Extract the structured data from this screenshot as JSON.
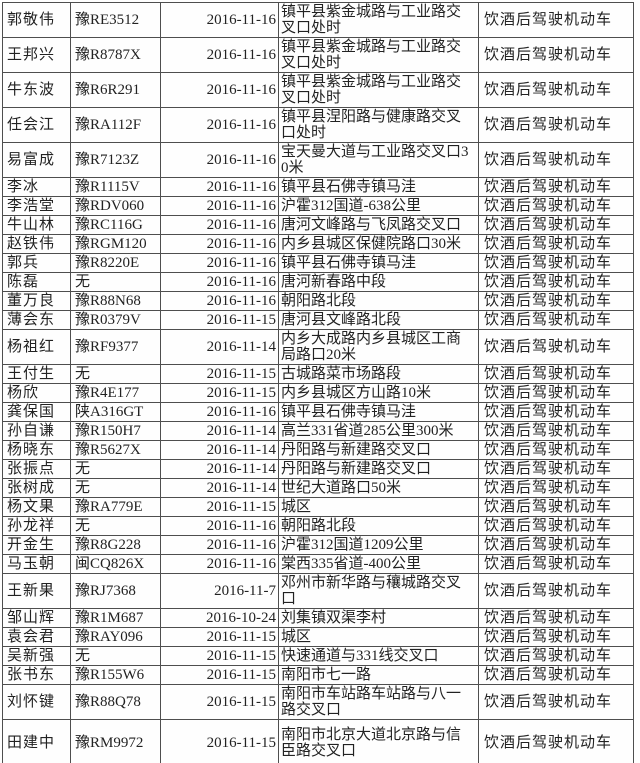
{
  "colors": {
    "border": "#4e4e4e",
    "text": "#222222",
    "background": "#fefefe"
  },
  "table": {
    "violation_common": "饮酒后驾驶机动车",
    "rows": [
      {
        "name": "郭敬伟",
        "plate": "豫RE3512",
        "date": "2016-11-16",
        "location": "镇平县紫金城路与工业路交叉口处时",
        "violation": "饮酒后驾驶机动车"
      },
      {
        "name": "王邦兴",
        "plate": "豫R8787X",
        "date": "2016-11-16",
        "location": "镇平县紫金城路与工业路交叉口处时",
        "violation": "饮酒后驾驶机动车"
      },
      {
        "name": "牛东波",
        "plate": "豫R6R291",
        "date": "2016-11-16",
        "location": "镇平县紫金城路与工业路交叉口处时",
        "violation": "饮酒后驾驶机动车"
      },
      {
        "name": "任会江",
        "plate": "豫RA112F",
        "date": "2016-11-16",
        "location": "镇平县涅阳路与健康路交叉口处时",
        "violation": "饮酒后驾驶机动车"
      },
      {
        "name": "易富成",
        "plate": "豫R7123Z",
        "date": "2016-11-16",
        "location": "宝天曼大道与工业路交叉口30米",
        "violation": "饮酒后驾驶机动车"
      },
      {
        "name": "李冰",
        "plate": "豫R1115V",
        "date": "2016-11-16",
        "location": "镇平县石佛寺镇马洼",
        "violation": "饮酒后驾驶机动车"
      },
      {
        "name": "李浩堂",
        "plate": "豫RDV060",
        "date": "2016-11-16",
        "location": "沪霍312国道-638公里",
        "violation": "饮酒后驾驶机动车"
      },
      {
        "name": "牛山林",
        "plate": "豫RC116G",
        "date": "2016-11-16",
        "location": "唐河文峰路与飞凤路交叉口",
        "violation": "饮酒后驾驶机动车"
      },
      {
        "name": "赵铁伟",
        "plate": "豫RGM120",
        "date": "2016-11-16",
        "location": "内乡县城区保健院路口30米",
        "violation": "饮酒后驾驶机动车"
      },
      {
        "name": "郭兵",
        "plate": "豫R8220E",
        "date": "2016-11-16",
        "location": "镇平县石佛寺镇马洼",
        "violation": "饮酒后驾驶机动车"
      },
      {
        "name": "陈磊",
        "plate": "无",
        "date": "2016-11-16",
        "location": "唐河新春路中段",
        "violation": "饮酒后驾驶机动车"
      },
      {
        "name": "董万良",
        "plate": "豫R88N68",
        "date": "2016-11-16",
        "location": "朝阳路北段",
        "violation": "饮酒后驾驶机动车"
      },
      {
        "name": "薄会东",
        "plate": "豫R0379V",
        "date": "2016-11-15",
        "location": "唐河县文峰路北段",
        "violation": "饮酒后驾驶机动车"
      },
      {
        "name": "杨祖红",
        "plate": "豫RF9377",
        "date": "2016-11-14",
        "location": "内乡大成路内乡县城区工商局路口20米",
        "violation": "饮酒后驾驶机动车"
      },
      {
        "name": "王付生",
        "plate": "无",
        "date": "2016-11-15",
        "location": "古城路菜市场路段",
        "violation": "饮酒后驾驶机动车"
      },
      {
        "name": "杨欣",
        "plate": "豫R4E177",
        "date": "2016-11-15",
        "location": "内乡县城区方山路10米",
        "violation": "饮酒后驾驶机动车"
      },
      {
        "name": "龚保国",
        "plate": "陕A316GT",
        "date": "2016-11-16",
        "location": "镇平县石佛寺镇马洼",
        "violation": "饮酒后驾驶机动车"
      },
      {
        "name": "孙自谦",
        "plate": "豫R150H7",
        "date": "2016-11-14",
        "location": "高兰331省道285公里300米",
        "violation": "饮酒后驾驶机动车"
      },
      {
        "name": "杨晓东",
        "plate": "豫R5627X",
        "date": "2016-11-14",
        "location": "丹阳路与新建路交叉口",
        "violation": "饮酒后驾驶机动车"
      },
      {
        "name": "张振点",
        "plate": "无",
        "date": "2016-11-14",
        "location": "丹阳路与新建路交叉口",
        "violation": "饮酒后驾驶机动车"
      },
      {
        "name": "张树成",
        "plate": "无",
        "date": "2016-11-14",
        "location": "世纪大道路口50米",
        "violation": "饮酒后驾驶机动车"
      },
      {
        "name": "杨文果",
        "plate": "豫RA779E",
        "date": "2016-11-15",
        "location": "城区",
        "violation": "饮酒后驾驶机动车"
      },
      {
        "name": "孙龙祥",
        "plate": "无",
        "date": "2016-11-16",
        "location": "朝阳路北段",
        "violation": "饮酒后驾驶机动车"
      },
      {
        "name": "开金生",
        "plate": "豫R8G228",
        "date": "2016-11-16",
        "location": "沪霍312国道1209公里",
        "violation": "饮酒后驾驶机动车"
      },
      {
        "name": "马玉朝",
        "plate": "闽CQ826X",
        "date": "2016-11-16",
        "location": "棠西335省道-400公里",
        "violation": "饮酒后驾驶机动车"
      },
      {
        "name": "王新果",
        "plate": "豫RJ7368",
        "date": "2016-11-7",
        "location": "邓州市新华路与穰城路交叉口",
        "violation": "饮酒后驾驶机动车"
      },
      {
        "name": "邹山辉",
        "plate": "豫R1M687",
        "date": "2016-10-24",
        "location": "刘集镇双渠李村",
        "violation": "饮酒后驾驶机动车"
      },
      {
        "name": "袁会君",
        "plate": "豫RAY096",
        "date": "2016-11-15",
        "location": "城区",
        "violation": "饮酒后驾驶机动车"
      },
      {
        "name": "吴新强",
        "plate": "无",
        "date": "2016-11-15",
        "location": "快速通道与331线交叉口",
        "violation": "饮酒后驾驶机动车"
      },
      {
        "name": "张书东",
        "plate": "豫R155W6",
        "date": "2016-11-15",
        "location": "南阳市七一路",
        "violation": "饮酒后驾驶机动车"
      },
      {
        "name": "刘怀键",
        "plate": "豫R88Q78",
        "date": "2016-11-15",
        "location": "南阳市车站路车站路与八一路交叉口",
        "violation": "饮酒后驾驶机动车"
      },
      {
        "name": "田建中",
        "plate": "豫RM9972",
        "date": "2016-11-15",
        "location": "南阳市北京大道北京路与信臣路交叉口",
        "violation": "饮酒后驾驶机动车"
      }
    ]
  }
}
